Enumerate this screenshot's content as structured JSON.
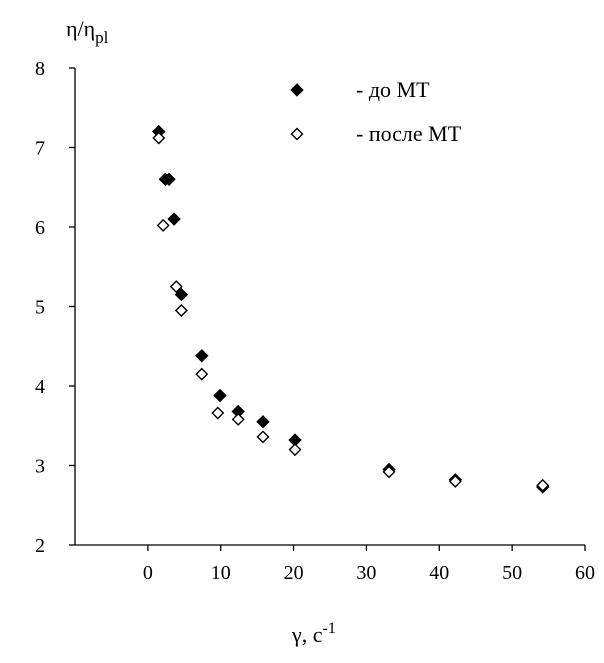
{
  "chart_data": {
    "type": "scatter",
    "ylabel_main": "η/η",
    "ylabel_sub": "pl",
    "xlabel_main": "γ, с",
    "xlabel_sup": "-1",
    "xlim": [
      -10,
      60
    ],
    "ylim": [
      2,
      8
    ],
    "xticks": [
      0,
      10,
      20,
      30,
      40,
      50,
      60
    ],
    "yticks": [
      2,
      3,
      4,
      5,
      6,
      7,
      8
    ],
    "grid": false,
    "legend_position": "top-right",
    "series": [
      {
        "name": "- до МТ",
        "marker": "filled-diamond",
        "x": [
          1.5,
          2.4,
          2.9,
          3.6,
          4.6,
          7.4,
          9.9,
          12.4,
          15.8,
          20.2,
          33.1,
          42.2,
          54.2
        ],
        "y": [
          7.2,
          6.6,
          6.6,
          6.1,
          5.15,
          4.38,
          3.88,
          3.68,
          3.55,
          3.32,
          2.95,
          2.82,
          2.73
        ]
      },
      {
        "name": "- после МТ",
        "marker": "open-diamond",
        "x": [
          1.5,
          2.1,
          3.9,
          4.6,
          7.4,
          9.6,
          12.4,
          15.8,
          20.2,
          33.1,
          42.2,
          54.2
        ],
        "y": [
          7.12,
          6.02,
          5.25,
          4.95,
          4.15,
          3.66,
          3.58,
          3.36,
          3.2,
          2.92,
          2.8,
          2.75
        ]
      }
    ]
  }
}
